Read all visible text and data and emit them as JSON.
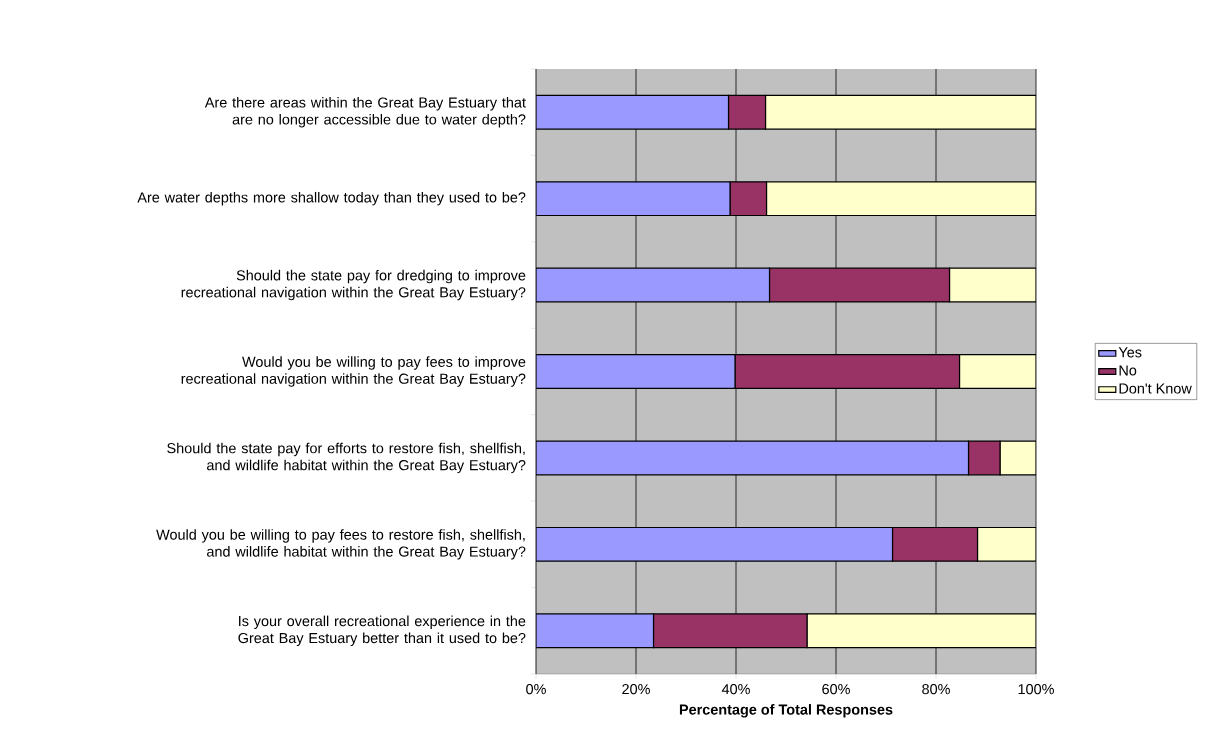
{
  "chart_data": {
    "type": "bar",
    "orientation": "horizontal",
    "stacked": true,
    "categories": [
      "Are there areas within the Great Bay Estuary that are no longer accessible due to water depth?",
      "Are water depths more shallow today than they used to be?",
      "Should the state pay for dredging to improve recreational navigation within the Great Bay Estuary?",
      "Would you be willing to pay fees to improve recreational navigation within the Great Bay Estuary?",
      "Should the state pay for efforts to restore fish, shellfish, and wildlife habitat within the Great Bay Estuary?",
      "Would you be willing to pay fees to restore fish, shellfish, and wildlife habitat within the Great Bay Estuary?",
      "Is your overall recreational experience in the Great Bay Estuary better than it used to be?"
    ],
    "series": [
      {
        "name": "Yes",
        "color": "#9999ff",
        "values": [
          38.5,
          38.8,
          46.7,
          39.8,
          86.5,
          71.3,
          23.5
        ]
      },
      {
        "name": "No",
        "color": "#993366",
        "values": [
          7.4,
          7.3,
          36.0,
          44.9,
          6.3,
          17.0,
          30.7
        ]
      },
      {
        "name": "Don't Know",
        "color": "#ffffcc",
        "values": [
          54.1,
          53.9,
          17.3,
          15.3,
          7.2,
          11.7,
          45.8
        ]
      }
    ],
    "xlabel": "Percentage of Total Responses",
    "xlim": [
      0,
      100
    ],
    "xticks": [
      {
        "value": 0,
        "label": "0%"
      },
      {
        "value": 20,
        "label": "20%"
      },
      {
        "value": 40,
        "label": "40%"
      },
      {
        "value": 60,
        "label": "60%"
      },
      {
        "value": 80,
        "label": "80%"
      },
      {
        "value": 100,
        "label": "100%"
      }
    ],
    "grid": "x",
    "legend": "right"
  }
}
